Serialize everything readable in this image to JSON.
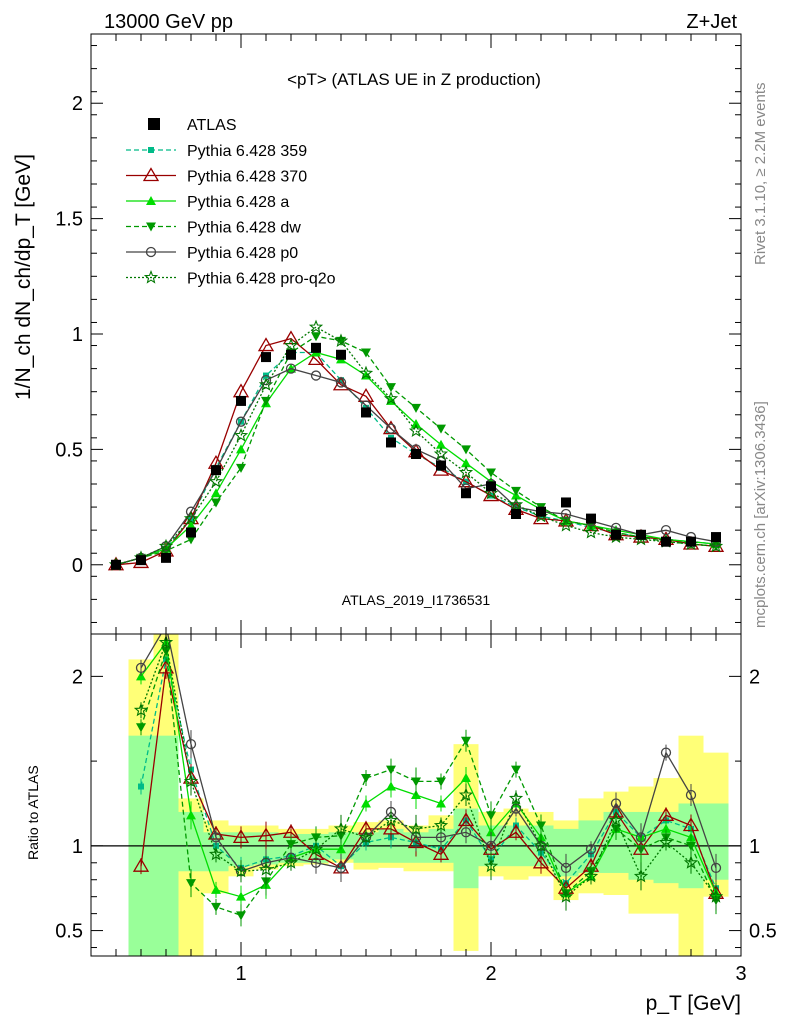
{
  "header": {
    "energy_label": "13000 GeV pp",
    "process_label": "Z+Jet"
  },
  "side_labels": {
    "rivet": "Rivet 3.1.10, ≥ 2.2M events",
    "mcplots": "mcplots.cern.ch [arXiv:1306.3436]"
  },
  "chart_data": [
    {
      "type": "line",
      "title": "<pT> (ATLAS UE in Z production)",
      "watermark": "ATLAS_2019_I1736531",
      "ylabel": "1/N_ch dN_ch/dp_T [GeV]",
      "xlim": [
        0.4,
        3.0
      ],
      "ylim": [
        -0.3,
        2.3
      ],
      "yticks": [
        "0",
        "0.5",
        "1",
        "1.5",
        "2"
      ],
      "legend_position": "top-left",
      "data": {
        "name": "ATLAS",
        "x": [
          0.5,
          0.6,
          0.7,
          0.8,
          0.9,
          1.0,
          1.1,
          1.2,
          1.3,
          1.4,
          1.5,
          1.6,
          1.7,
          1.8,
          1.9,
          2.0,
          2.1,
          2.2,
          2.3,
          2.4,
          2.5,
          2.6,
          2.7,
          2.8,
          2.9
        ],
        "y": [
          0.0,
          0.02,
          0.03,
          0.14,
          0.41,
          0.71,
          0.9,
          0.91,
          0.94,
          0.91,
          0.66,
          0.53,
          0.48,
          0.43,
          0.31,
          0.34,
          0.22,
          0.23,
          0.27,
          0.2,
          0.13,
          0.13,
          0.1,
          0.1,
          0.12
        ]
      },
      "series": [
        {
          "name": "Pythia 6.428 359",
          "color": "#00bb88",
          "y": [
            0.0,
            0.03,
            0.07,
            0.2,
            0.42,
            0.62,
            0.82,
            0.92,
            0.92,
            0.8,
            0.68,
            0.55,
            0.48,
            0.42,
            0.36,
            0.3,
            0.25,
            0.21,
            0.19,
            0.16,
            0.14,
            0.12,
            0.11,
            0.1,
            0.09
          ]
        },
        {
          "name": "Pythia 6.428 370",
          "color": "#990000",
          "y": [
            0.0,
            0.01,
            0.06,
            0.2,
            0.44,
            0.75,
            0.95,
            0.98,
            0.89,
            0.78,
            0.73,
            0.59,
            0.49,
            0.41,
            0.36,
            0.3,
            0.24,
            0.2,
            0.19,
            0.17,
            0.13,
            0.12,
            0.11,
            0.09,
            0.08
          ]
        },
        {
          "name": "Pythia 6.428 a",
          "color": "#00dd00",
          "y": [
            0.0,
            0.03,
            0.07,
            0.17,
            0.31,
            0.5,
            0.7,
            0.85,
            0.92,
            0.89,
            0.82,
            0.71,
            0.61,
            0.52,
            0.44,
            0.36,
            0.3,
            0.24,
            0.19,
            0.17,
            0.15,
            0.13,
            0.11,
            0.1,
            0.09
          ]
        },
        {
          "name": "Pythia 6.428 dw",
          "color": "#009900",
          "y": [
            0.0,
            0.03,
            0.06,
            0.11,
            0.27,
            0.42,
            0.71,
            0.92,
            0.99,
            0.97,
            0.92,
            0.77,
            0.68,
            0.59,
            0.5,
            0.4,
            0.32,
            0.25,
            0.19,
            0.17,
            0.14,
            0.12,
            0.1,
            0.09,
            0.08
          ]
        },
        {
          "name": "Pythia 6.428 p0",
          "color": "#444444",
          "y": [
            0.0,
            0.03,
            0.08,
            0.23,
            0.41,
            0.62,
            0.8,
            0.85,
            0.82,
            0.79,
            0.69,
            0.59,
            0.5,
            0.45,
            0.33,
            0.35,
            0.25,
            0.23,
            0.22,
            0.19,
            0.16,
            0.13,
            0.15,
            0.12,
            0.1
          ]
        },
        {
          "name": "Pythia 6.428 pro-q2o",
          "color": "#007700",
          "y": [
            0.0,
            0.03,
            0.08,
            0.2,
            0.36,
            0.56,
            0.78,
            0.95,
            1.03,
            0.97,
            0.83,
            0.72,
            0.58,
            0.48,
            0.4,
            0.31,
            0.26,
            0.21,
            0.17,
            0.14,
            0.12,
            0.11,
            0.1,
            0.09,
            0.08
          ]
        }
      ]
    },
    {
      "type": "line",
      "ylabel": "Ratio to ATLAS",
      "xlabel": "p_T [GeV]",
      "xlim": [
        0.4,
        3.0
      ],
      "ylim": [
        0.35,
        2.25
      ],
      "xticks": [
        "1",
        "2",
        "3"
      ],
      "yticks": [
        "0.5",
        "1",
        "2"
      ],
      "reference_line": 1,
      "bands": {
        "x_edges": [
          0.55,
          0.65,
          0.75,
          0.85,
          0.95,
          1.05,
          1.15,
          1.25,
          1.35,
          1.45,
          1.55,
          1.65,
          1.75,
          1.85,
          1.95,
          2.05,
          2.15,
          2.25,
          2.35,
          2.45,
          2.55,
          2.65,
          2.75,
          2.85,
          2.95
        ],
        "total": {
          "color": "#ffff77",
          "low": [
            0.3,
            0.3,
            0.3,
            0.72,
            0.82,
            0.86,
            0.88,
            0.89,
            0.9,
            0.86,
            0.87,
            0.85,
            0.85,
            0.38,
            0.82,
            0.8,
            0.82,
            0.68,
            0.72,
            0.71,
            0.6,
            0.6,
            0.3,
            0.7
          ],
          "high": [
            2.1,
            2.3,
            1.28,
            1.15,
            1.12,
            1.12,
            1.1,
            1.1,
            1.12,
            1.14,
            1.15,
            1.12,
            1.18,
            1.6,
            1.2,
            1.22,
            1.2,
            1.15,
            1.28,
            1.32,
            1.35,
            1.4,
            1.65,
            1.55
          ]
        },
        "stat": {
          "color": "#99ff99",
          "low": [
            0.3,
            0.3,
            0.85,
            0.85,
            0.88,
            0.89,
            0.9,
            0.9,
            0.92,
            0.9,
            0.9,
            0.9,
            0.9,
            0.75,
            0.88,
            0.88,
            0.88,
            0.82,
            0.84,
            0.84,
            0.8,
            0.78,
            0.75,
            0.8
          ],
          "high": [
            1.65,
            1.65,
            1.2,
            1.08,
            1.08,
            1.08,
            1.07,
            1.07,
            1.08,
            1.08,
            1.1,
            1.08,
            1.1,
            1.22,
            1.12,
            1.12,
            1.12,
            1.1,
            1.15,
            1.2,
            1.2,
            1.2,
            1.25,
            1.25
          ]
        }
      },
      "series": [
        {
          "name": "Pythia 6.428 359",
          "y": [
            1.35,
            2.1,
            1.45,
            1.0,
            0.87,
            0.92,
            0.94,
            1.0,
            0.88,
            1.02,
            1.05,
            1.02,
            0.98,
            1.15,
            0.92,
            1.12,
            0.96,
            0.78,
            0.95,
            1.2,
            1.05,
            1.15,
            1.1,
            0.75
          ]
        },
        {
          "name": "Pythia 6.428 370",
          "y": [
            0.88,
            2.05,
            1.4,
            1.07,
            1.05,
            1.06,
            1.08,
            0.95,
            0.87,
            1.1,
            1.1,
            1.02,
            0.95,
            1.15,
            0.98,
            1.08,
            0.9,
            0.75,
            0.88,
            1.2,
            0.98,
            1.18,
            1.12,
            0.72
          ]
        },
        {
          "name": "Pythia 6.428 a",
          "y": [
            2.0,
            2.2,
            1.18,
            0.74,
            0.7,
            0.77,
            0.93,
            0.98,
            0.98,
            1.25,
            1.35,
            1.3,
            1.25,
            1.4,
            1.08,
            1.25,
            1.05,
            0.72,
            0.82,
            1.1,
            1.05,
            1.1,
            1.05,
            0.72
          ]
        },
        {
          "name": "Pythia 6.428 dw",
          "y": [
            1.7,
            2.15,
            0.78,
            0.64,
            0.59,
            0.79,
            1.01,
            1.05,
            1.06,
            1.4,
            1.45,
            1.38,
            1.38,
            1.62,
            1.18,
            1.45,
            1.12,
            0.72,
            0.85,
            1.1,
            0.98,
            1.05,
            1.0,
            0.68
          ]
        },
        {
          "name": "Pythia 6.428 p0",
          "y": [
            2.05,
            2.3,
            1.6,
            1.05,
            0.85,
            0.9,
            0.93,
            0.9,
            0.87,
            1.05,
            1.2,
            1.05,
            1.05,
            1.08,
            1.0,
            1.22,
            1.0,
            0.87,
            0.98,
            1.25,
            1.05,
            1.55,
            1.3,
            0.87
          ]
        },
        {
          "name": "Pythia 6.428 pro-q2o",
          "y": [
            1.8,
            2.2,
            1.38,
            0.95,
            0.85,
            0.86,
            0.9,
            0.98,
            1.1,
            1.05,
            1.15,
            1.1,
            1.12,
            1.3,
            0.88,
            1.28,
            1.0,
            0.7,
            0.82,
            1.15,
            0.82,
            1.02,
            0.9,
            0.7
          ]
        }
      ]
    }
  ]
}
